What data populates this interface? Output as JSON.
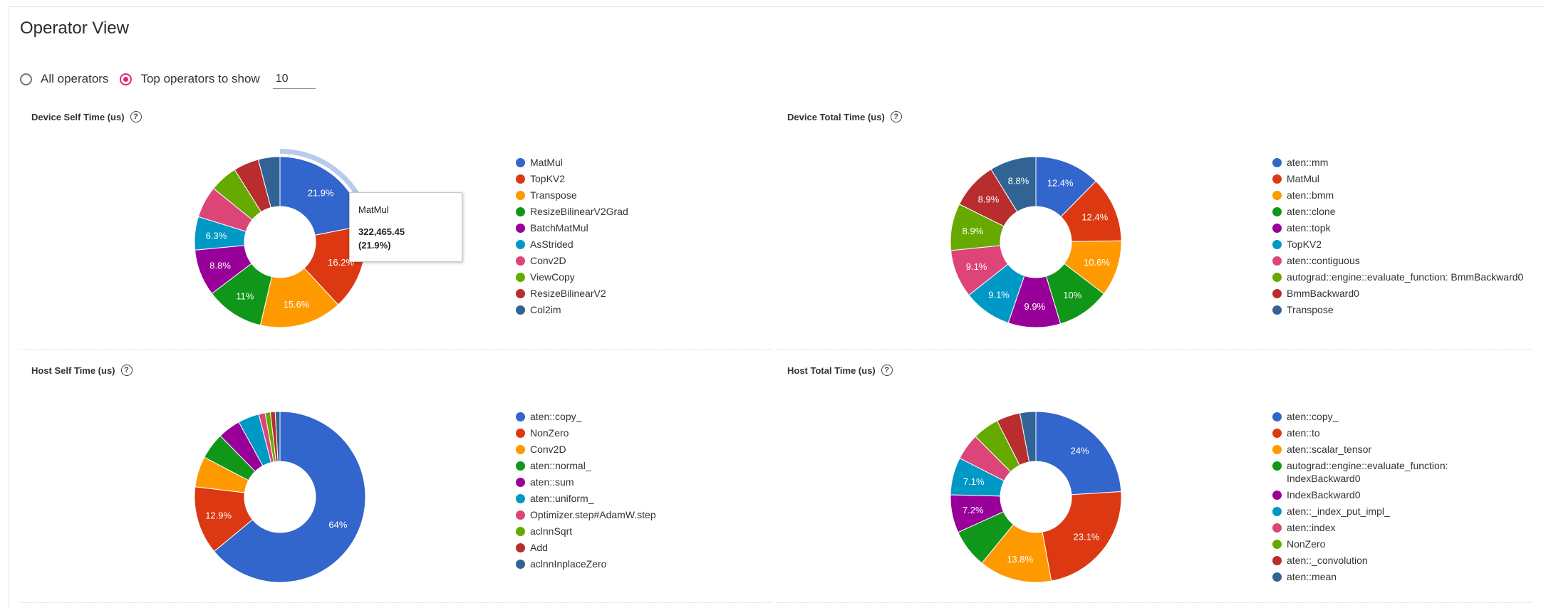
{
  "title": "Operator View",
  "controls": {
    "all_operators_label": "All operators",
    "top_operators_label": "Top operators to show",
    "top_n_value": "10"
  },
  "palette": [
    "#3366cc",
    "#dc3912",
    "#ff9900",
    "#109618",
    "#990099",
    "#0099c6",
    "#dd4477",
    "#66aa00",
    "#b82e2e",
    "#316395"
  ],
  "tooltip": {
    "name": "MatMul",
    "value": "322,465.45",
    "percent": "(21.9%)"
  },
  "chart_data": [
    {
      "type": "pie",
      "title": "Device Self Time (us)",
      "hole": true,
      "labels": [
        "MatMul",
        "TopKV2",
        "Transpose",
        "ResizeBilinearV2Grad",
        "BatchMatMul",
        "AsStrided",
        "Conv2D",
        "ViewCopy",
        "ResizeBilinearV2",
        "Col2im"
      ],
      "values": [
        21.9,
        16.2,
        15.6,
        11.0,
        8.8,
        6.3,
        6.0,
        5.3,
        4.8,
        4.1
      ],
      "slice_labels": [
        "21.9%",
        "16.2%",
        "15.6%",
        "11%",
        "8.8%",
        "6.3%",
        "",
        "",
        "",
        ""
      ],
      "highlighted": "MatMul"
    },
    {
      "type": "pie",
      "title": "Device Total Time (us)",
      "hole": true,
      "labels": [
        "aten::mm",
        "MatMul",
        "aten::bmm",
        "aten::clone",
        "aten::topk",
        "TopKV2",
        "aten::contiguous",
        "autograd::engine::evaluate_function: BmmBackward0",
        "BmmBackward0",
        "Transpose"
      ],
      "values": [
        12.4,
        12.4,
        10.6,
        10.0,
        9.9,
        9.1,
        9.1,
        8.9,
        8.9,
        8.8
      ],
      "slice_labels": [
        "12.4%",
        "12.4%",
        "10.6%",
        "10%",
        "9.9%",
        "9.1%",
        "9.1%",
        "8.9%",
        "8.9%",
        "8.8%"
      ]
    },
    {
      "type": "pie",
      "title": "Host Self Time (us)",
      "hole": true,
      "labels": [
        "aten::copy_",
        "NonZero",
        "Conv2D",
        "aten::normal_",
        "aten::sum",
        "aten::uniform_",
        "Optimizer.step#AdamW.step",
        "aclnnSqrt",
        "Add",
        "aclnnInplaceZero"
      ],
      "values": [
        64.0,
        12.9,
        5.8,
        5.0,
        4.3,
        4.0,
        1.2,
        1.0,
        0.9,
        0.9
      ],
      "slice_labels": [
        "64%",
        "12.9%",
        "",
        "",
        "",
        "",
        "",
        "",
        "",
        ""
      ]
    },
    {
      "type": "pie",
      "title": "Host Total Time (us)",
      "hole": true,
      "labels": [
        "aten::copy_",
        "aten::to",
        "aten::scalar_tensor",
        "autograd::engine::evaluate_function:\nIndexBackward0",
        "IndexBackward0",
        "aten::_index_put_impl_",
        "aten::index",
        "NonZero",
        "aten::_convolution",
        "aten::mean"
      ],
      "values": [
        24.0,
        23.1,
        13.8,
        7.3,
        7.2,
        7.1,
        5.0,
        5.0,
        4.5,
        3.0
      ],
      "slice_labels": [
        "24%",
        "23.1%",
        "13.8%",
        "",
        "7.2%",
        "7.1%",
        "",
        "",
        "",
        ""
      ]
    }
  ]
}
